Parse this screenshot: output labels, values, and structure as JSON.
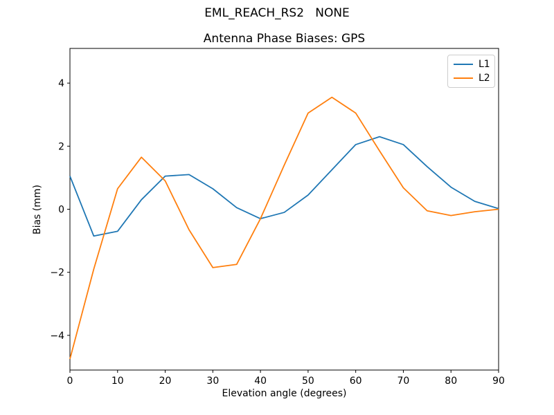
{
  "chart_data": {
    "type": "line",
    "suptitle": "EML_REACH_RS2   NONE",
    "title": "Antenna Phase Biases: GPS",
    "xlabel": "Elevation angle (degrees)",
    "ylabel": "Bias (mm)",
    "xlim": [
      0,
      90
    ],
    "ylim": [
      -5.1,
      5.1
    ],
    "xticks": [
      0,
      10,
      20,
      30,
      40,
      50,
      60,
      70,
      80,
      90
    ],
    "yticks": [
      -4,
      -2,
      0,
      2,
      4
    ],
    "grid": false,
    "legend": {
      "position": "upper right",
      "labels": [
        "L1",
        "L2"
      ]
    },
    "x": [
      0,
      5,
      10,
      15,
      20,
      25,
      30,
      35,
      40,
      45,
      50,
      55,
      60,
      65,
      70,
      75,
      80,
      85,
      90
    ],
    "series": [
      {
        "name": "L1",
        "color": "#1f77b4",
        "values": [
          1.05,
          -0.85,
          -0.7,
          0.3,
          1.05,
          1.1,
          0.65,
          0.05,
          -0.3,
          -0.1,
          0.45,
          1.25,
          2.05,
          2.3,
          2.05,
          1.35,
          0.7,
          0.25,
          0.02
        ]
      },
      {
        "name": "L2",
        "color": "#ff7f0e",
        "values": [
          -4.75,
          -1.9,
          0.65,
          1.65,
          0.9,
          -0.65,
          -1.85,
          -1.75,
          -0.3,
          1.4,
          3.05,
          3.55,
          3.05,
          1.85,
          0.68,
          -0.05,
          -0.2,
          -0.08,
          0.0
        ]
      }
    ]
  }
}
